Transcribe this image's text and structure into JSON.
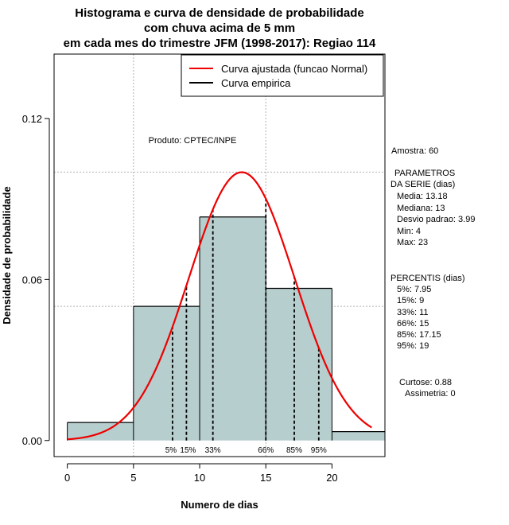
{
  "chart_data": {
    "type": "histogram",
    "title": [
      "Histograma e curva de densidade de probabilidade",
      "com chuva acima de 5 mm",
      "em cada mes do trimestre JFM (1998-2017): Regiao 114"
    ],
    "xlabel": "Numero de dias",
    "ylabel": "Densidade de probabilidade",
    "xlim": [
      -1,
      24
    ],
    "ylim": [
      -0.006,
      0.144
    ],
    "x_ticks": [
      0,
      5,
      10,
      15,
      20
    ],
    "y_ticks": [
      0.0,
      0.06,
      0.12
    ],
    "y_tick_labels": [
      "0.00",
      "0.06",
      "0.12"
    ],
    "bins": [
      {
        "from": 0,
        "to": 5,
        "density": 0.0067
      },
      {
        "from": 5,
        "to": 10,
        "density": 0.05
      },
      {
        "from": 10,
        "to": 15,
        "density": 0.0833
      },
      {
        "from": 15,
        "to": 20,
        "density": 0.0567
      },
      {
        "from": 20,
        "to": 24,
        "density": 0.0033
      }
    ],
    "normal_fit": {
      "mean": 13.18,
      "sd": 3.99,
      "x_from": 0,
      "x_to": 23
    },
    "grid_y": [
      0.05,
      0.1
    ],
    "grid_x": [
      5,
      15
    ],
    "percentile_lines": [
      {
        "label": "5%",
        "x": 7.95
      },
      {
        "label": "15%",
        "x": 9
      },
      {
        "label": "33%",
        "x": 11
      },
      {
        "label": "66%",
        "x": 15
      },
      {
        "label": "85%",
        "x": 17.15
      },
      {
        "label": "95%",
        "x": 19
      }
    ],
    "legend": [
      {
        "label": "Curva ajustada (funcao Normal)",
        "color": "#ee0000"
      },
      {
        "label": "Curva empirica",
        "color": "#000000"
      }
    ],
    "legend_position": "top-right",
    "annotation": "Produto: CPTEC/INPE",
    "colors": {
      "bar_fill": "#b7cece",
      "curve": "#ee0000",
      "grid": "#b0b0b0"
    }
  },
  "side_panel": {
    "sample": "Amostra: 60",
    "params_title_1": "PARAMETROS",
    "params_title_2": "DA SERIE (dias)",
    "media": "Media: 13.18",
    "mediana": "Mediana: 13",
    "desvio": "Desvio padrao: 3.99",
    "min": "Min: 4",
    "max": "Max: 23",
    "percentis_title": "PERCENTIS (dias)",
    "p5": "5%: 7.95",
    "p15": "15%: 9",
    "p33": "33%: 11",
    "p66": "66%: 15",
    "p85": "85%: 17.15",
    "p95": "95%: 19",
    "curtose": "Curtose: 0.88",
    "assimetria": "Assimetria: 0"
  }
}
